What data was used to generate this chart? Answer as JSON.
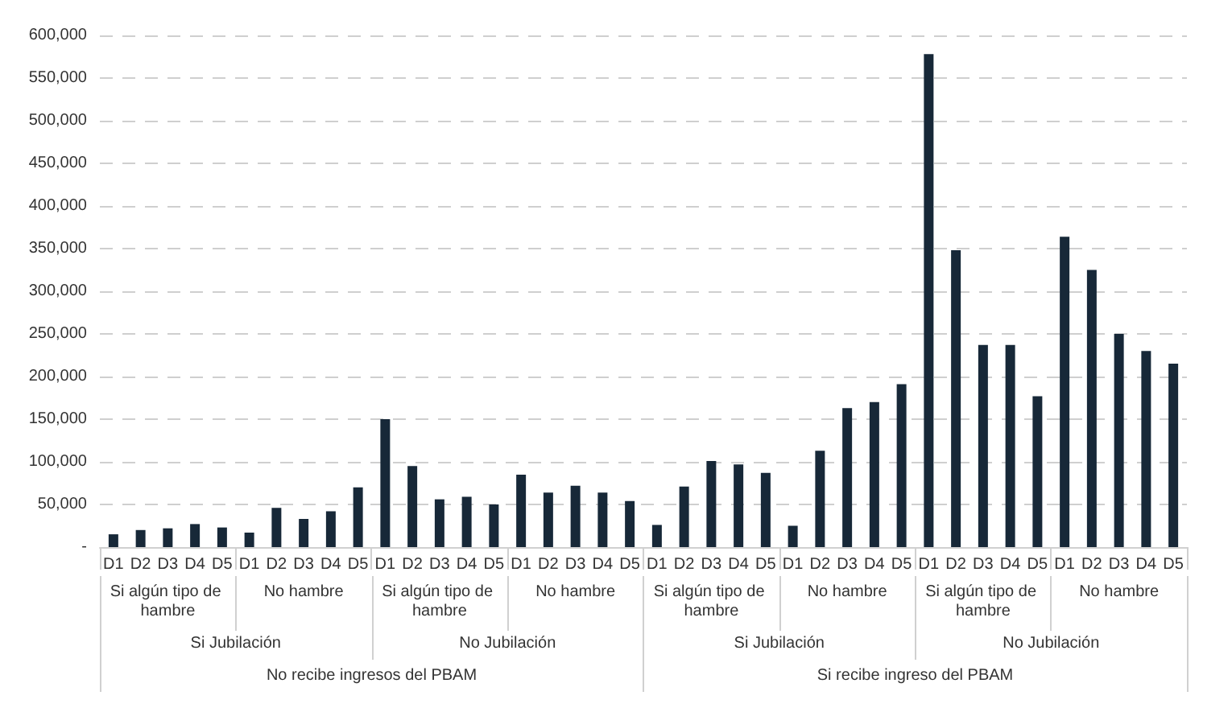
{
  "chart_data": {
    "type": "bar",
    "categories": [
      "D1",
      "D2",
      "D3",
      "D4",
      "D5",
      "D1",
      "D2",
      "D3",
      "D4",
      "D5",
      "D1",
      "D2",
      "D3",
      "D4",
      "D5",
      "D1",
      "D2",
      "D3",
      "D4",
      "D5",
      "D1",
      "D2",
      "D3",
      "D4",
      "D5",
      "D1",
      "D2",
      "D3",
      "D4",
      "D5",
      "D1",
      "D2",
      "D3",
      "D4",
      "D5",
      "D1",
      "D2",
      "D3",
      "D4",
      "D5"
    ],
    "values": [
      15000,
      20000,
      22000,
      27000,
      23000,
      17000,
      46000,
      33000,
      42000,
      70000,
      150000,
      95000,
      56000,
      59000,
      50000,
      85000,
      64000,
      72000,
      64000,
      54000,
      26000,
      71000,
      101000,
      97000,
      87000,
      25000,
      113000,
      163000,
      170000,
      191000,
      578000,
      348000,
      237000,
      237000,
      177000,
      364000,
      325000,
      250000,
      230000,
      215000
    ],
    "color": "#172838",
    "annotations": [
      "Si algún tipo de hambre",
      "No hambre",
      "Si algún tipo de hambre",
      "No hambre",
      "Si algún tipo de hambre",
      "No hambre",
      "Si algún tipo de hambre",
      "No hambre",
      "Si Jubilación",
      "No Jubilación",
      "Si Jubilación",
      "No Jubilación",
      "No recibe ingresos del PBAM",
      "Si recibe ingreso del PBAM"
    ],
    "ylim": [
      0,
      600000
    ],
    "yticks": [
      {
        "value": 0,
        "label": "-"
      },
      {
        "value": 50000,
        "label": "50,000"
      },
      {
        "value": 100000,
        "label": "100,000"
      },
      {
        "value": 150000,
        "label": "150,000"
      },
      {
        "value": 200000,
        "label": "200,000"
      },
      {
        "value": 250000,
        "label": "250,000"
      },
      {
        "value": 300000,
        "label": "300,000"
      },
      {
        "value": 350000,
        "label": "350,000"
      },
      {
        "value": 400000,
        "label": "400,000"
      },
      {
        "value": 450000,
        "label": "450,000"
      },
      {
        "value": 500000,
        "label": "500,000"
      },
      {
        "value": 550000,
        "label": "550,000"
      },
      {
        "value": 600000,
        "label": "600,000"
      }
    ],
    "grid": "y"
  }
}
